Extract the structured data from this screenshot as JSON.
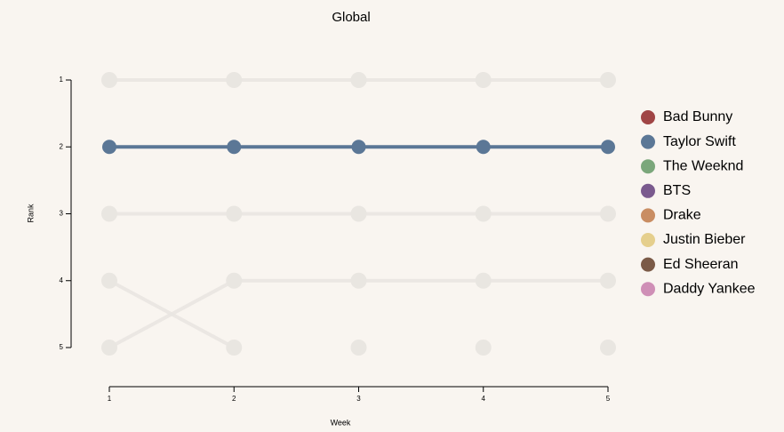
{
  "chart_data": {
    "type": "bump",
    "title": "Global",
    "x_label": "Week",
    "y_label": "Rank",
    "x": [
      1,
      2,
      3,
      4,
      5
    ],
    "xlim": [
      1,
      5
    ],
    "xticks": [
      1,
      2,
      3,
      4,
      5
    ],
    "ylim": [
      1,
      5
    ],
    "yticks": [
      1,
      2,
      3,
      4,
      5
    ],
    "y_inverted": true,
    "highlight": "Taylor Swift",
    "faded_color": "#e9e6e1",
    "series": [
      {
        "name": "Bad Bunny",
        "color": "#a04545",
        "values": [
          1,
          1,
          1,
          1,
          1
        ]
      },
      {
        "name": "Taylor Swift",
        "color": "#5b7796",
        "values": [
          2,
          2,
          2,
          2,
          2
        ]
      },
      {
        "name": "The Weeknd",
        "color": "#7ba77b",
        "values": [
          3,
          3,
          3,
          3,
          3
        ]
      },
      {
        "name": "BTS",
        "color": "#7a5a8e",
        "values": [
          4,
          5,
          null,
          null,
          null
        ]
      },
      {
        "name": "Drake",
        "color": "#c98d62",
        "values": [
          5,
          4,
          4,
          4,
          4
        ]
      },
      {
        "name": "Justin Bieber",
        "color": "#e5cf8d",
        "values": [
          null,
          null,
          5,
          null,
          null
        ]
      },
      {
        "name": "Ed Sheeran",
        "color": "#7b5a47",
        "values": [
          null,
          null,
          null,
          5,
          null
        ]
      },
      {
        "name": "Daddy Yankee",
        "color": "#cf8fb6",
        "values": [
          null,
          null,
          null,
          null,
          5
        ]
      }
    ]
  }
}
